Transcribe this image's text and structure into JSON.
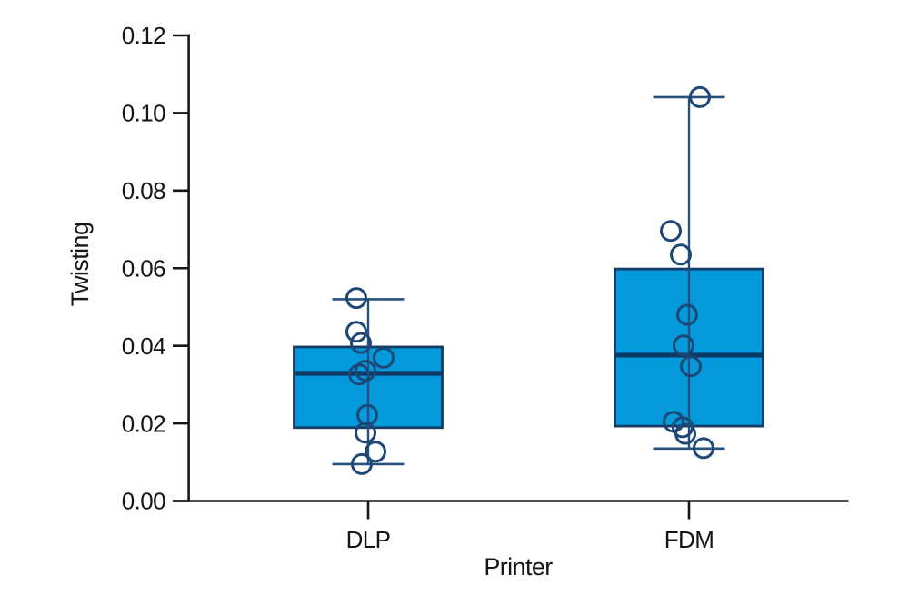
{
  "figure": {
    "background": "#ffffff"
  },
  "chart_data": {
    "type": "boxplot",
    "title": "",
    "xlabel": "Printer",
    "ylabel": "Twisting",
    "ylim": [
      0,
      0.12
    ],
    "yticks": [
      0,
      0.02,
      0.04,
      0.06,
      0.08,
      0.1,
      0.12
    ],
    "ytick_labels": [
      "0.00",
      "0.02",
      "0.04",
      "0.06",
      "0.08",
      "0.10",
      "0.12"
    ],
    "categories": [
      "DLP",
      "FDM"
    ],
    "grid": false,
    "legend": "none",
    "series": [
      {
        "category": "DLP",
        "whisker_low": 0.0095,
        "q1": 0.0189,
        "median": 0.0329,
        "q3": 0.0397,
        "whisker_high": 0.052,
        "points": [
          {
            "v": 0.0523,
            "dx": -13
          },
          {
            "v": 0.0436,
            "dx": -13
          },
          {
            "v": 0.0407,
            "dx": -8
          },
          {
            "v": 0.0369,
            "dx": 17
          },
          {
            "v": 0.0336,
            "dx": -3
          },
          {
            "v": 0.0326,
            "dx": -10
          },
          {
            "v": 0.0222,
            "dx": -1
          },
          {
            "v": 0.0176,
            "dx": -3
          },
          {
            "v": 0.0127,
            "dx": 8
          },
          {
            "v": 0.0095,
            "dx": -7
          }
        ]
      },
      {
        "category": "FDM",
        "whisker_low": 0.0135,
        "q1": 0.0193,
        "median": 0.0376,
        "q3": 0.0598,
        "whisker_high": 0.1041,
        "points": [
          {
            "v": 0.1041,
            "dx": 12
          },
          {
            "v": 0.0696,
            "dx": -20
          },
          {
            "v": 0.0635,
            "dx": -9
          },
          {
            "v": 0.048,
            "dx": -2
          },
          {
            "v": 0.0401,
            "dx": -6
          },
          {
            "v": 0.0347,
            "dx": 2
          },
          {
            "v": 0.0204,
            "dx": -17
          },
          {
            "v": 0.019,
            "dx": -7
          },
          {
            "v": 0.0173,
            "dx": -4
          },
          {
            "v": 0.0136,
            "dx": 16
          }
        ]
      }
    ],
    "colors": {
      "box_fill": "#0399DA",
      "box_border": "#153C66",
      "median": "#0D3966",
      "whisker": "#26517F",
      "point_stroke": "#1D4775",
      "axis": "#161616",
      "text": "#151515"
    }
  }
}
